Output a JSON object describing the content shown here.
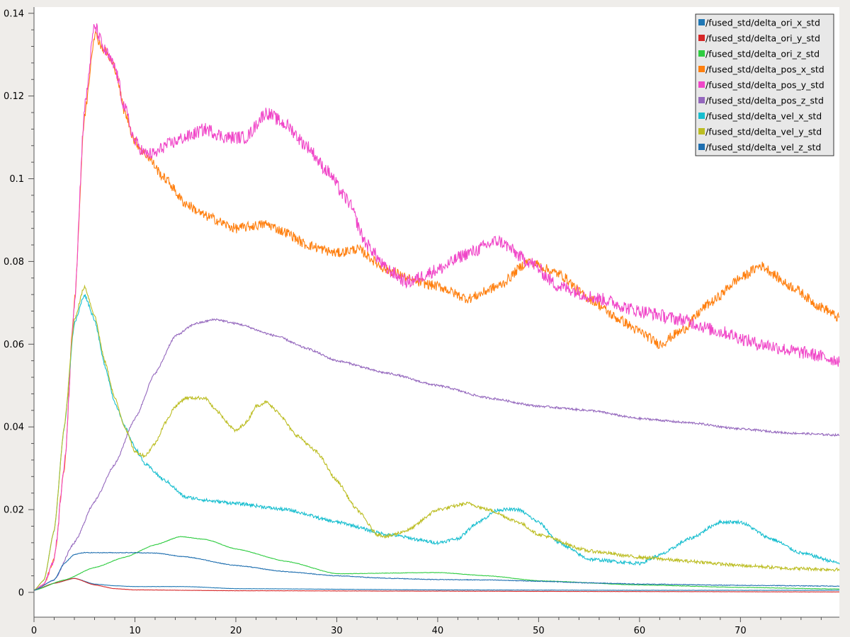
{
  "chart_data": {
    "type": "line",
    "title": "",
    "xlabel": "",
    "ylabel": "",
    "xlim": [
      0,
      79.8
    ],
    "ylim": [
      -0.006,
      0.1415
    ],
    "grid": false,
    "legend_position": "top-right",
    "x_ticks": [
      "0",
      "10",
      "20",
      "30",
      "40",
      "50",
      "60",
      "70"
    ],
    "y_ticks": [
      "0",
      "0.02",
      "0.04",
      "0.06",
      "0.08",
      "0.1",
      "0.12",
      "0.14"
    ],
    "series": [
      {
        "name": "/fused_std/delta_ori_x_std",
        "color": "#1f77b4",
        "noise": 3e-05,
        "points": [
          [
            0,
            0.0005
          ],
          [
            2,
            0.0022
          ],
          [
            4,
            0.0034
          ],
          [
            6,
            0.002
          ],
          [
            8,
            0.0016
          ],
          [
            10,
            0.0014
          ],
          [
            15,
            0.0014
          ],
          [
            20,
            0.0009
          ],
          [
            40,
            0.0006
          ],
          [
            60,
            0.0005
          ],
          [
            80,
            0.0005
          ]
        ]
      },
      {
        "name": "/fused_std/delta_ori_y_std",
        "color": "#d62728",
        "noise": 3e-05,
        "points": [
          [
            0,
            0.0005
          ],
          [
            2,
            0.0022
          ],
          [
            4,
            0.0034
          ],
          [
            6,
            0.0018
          ],
          [
            8,
            0.0009
          ],
          [
            10,
            0.0006
          ],
          [
            20,
            0.0004
          ],
          [
            40,
            0.0003
          ],
          [
            60,
            0.0002
          ],
          [
            80,
            0.0001
          ]
        ]
      },
      {
        "name": "/fused_std/delta_ori_z_std",
        "color": "#2ecc40",
        "noise": 5e-05,
        "points": [
          [
            0,
            0.0005
          ],
          [
            3,
            0.003
          ],
          [
            6,
            0.006
          ],
          [
            9,
            0.0085
          ],
          [
            12,
            0.0115
          ],
          [
            14.5,
            0.0135
          ],
          [
            17,
            0.0128
          ],
          [
            20,
            0.0105
          ],
          [
            25,
            0.0075
          ],
          [
            30,
            0.0045
          ],
          [
            40,
            0.0048
          ],
          [
            45,
            0.004
          ],
          [
            50,
            0.0028
          ],
          [
            60,
            0.0018
          ],
          [
            70,
            0.0012
          ],
          [
            80,
            0.0008
          ]
        ]
      },
      {
        "name": "/fused_std/delta_pos_x_std",
        "color": "#ff7f0e",
        "noise": 0.0012,
        "points": [
          [
            0,
            0.0005
          ],
          [
            1,
            0.002
          ],
          [
            2,
            0.008
          ],
          [
            3,
            0.03
          ],
          [
            4,
            0.07
          ],
          [
            5,
            0.115
          ],
          [
            6,
            0.135
          ],
          [
            7,
            0.131
          ],
          [
            8,
            0.127
          ],
          [
            9,
            0.116
          ],
          [
            10,
            0.109
          ],
          [
            11,
            0.106
          ],
          [
            13,
            0.1
          ],
          [
            15,
            0.094
          ],
          [
            17,
            0.091
          ],
          [
            20,
            0.088
          ],
          [
            23,
            0.089
          ],
          [
            25,
            0.087
          ],
          [
            27,
            0.084
          ],
          [
            30,
            0.082
          ],
          [
            32,
            0.083
          ],
          [
            35,
            0.078
          ],
          [
            38,
            0.075
          ],
          [
            40,
            0.074
          ],
          [
            43,
            0.071
          ],
          [
            46,
            0.074
          ],
          [
            49,
            0.08
          ],
          [
            52,
            0.077
          ],
          [
            55,
            0.071
          ],
          [
            58,
            0.066
          ],
          [
            60,
            0.063
          ],
          [
            62,
            0.06
          ],
          [
            64,
            0.063
          ],
          [
            67,
            0.07
          ],
          [
            70,
            0.076
          ],
          [
            72,
            0.079
          ],
          [
            75,
            0.074
          ],
          [
            78,
            0.069
          ],
          [
            80,
            0.066
          ]
        ]
      },
      {
        "name": "/fused_std/delta_pos_y_std",
        "color": "#f046c8",
        "noise": 0.0016,
        "points": [
          [
            0,
            0.0005
          ],
          [
            1,
            0.002
          ],
          [
            2,
            0.008
          ],
          [
            3,
            0.03
          ],
          [
            4,
            0.07
          ],
          [
            5,
            0.117
          ],
          [
            6,
            0.137
          ],
          [
            7,
            0.131
          ],
          [
            8,
            0.127
          ],
          [
            9,
            0.117
          ],
          [
            10,
            0.109
          ],
          [
            11,
            0.106
          ],
          [
            12,
            0.106
          ],
          [
            13,
            0.108
          ],
          [
            15,
            0.11
          ],
          [
            17,
            0.112
          ],
          [
            19,
            0.11
          ],
          [
            21,
            0.11
          ],
          [
            23,
            0.116
          ],
          [
            25,
            0.113
          ],
          [
            27,
            0.108
          ],
          [
            29,
            0.102
          ],
          [
            31,
            0.095
          ],
          [
            33,
            0.084
          ],
          [
            35,
            0.078
          ],
          [
            37,
            0.075
          ],
          [
            40,
            0.078
          ],
          [
            43,
            0.082
          ],
          [
            46,
            0.085
          ],
          [
            49,
            0.08
          ],
          [
            52,
            0.074
          ],
          [
            56,
            0.071
          ],
          [
            60,
            0.068
          ],
          [
            64,
            0.066
          ],
          [
            68,
            0.063
          ],
          [
            72,
            0.06
          ],
          [
            76,
            0.058
          ],
          [
            80,
            0.056
          ]
        ]
      },
      {
        "name": "/fused_std/delta_pos_z_std",
        "color": "#9467bd",
        "noise": 0.00025,
        "points": [
          [
            0,
            0.0005
          ],
          [
            2,
            0.003
          ],
          [
            4,
            0.012
          ],
          [
            6,
            0.022
          ],
          [
            8,
            0.031
          ],
          [
            10,
            0.042
          ],
          [
            12,
            0.053
          ],
          [
            14,
            0.062
          ],
          [
            16,
            0.065
          ],
          [
            18,
            0.066
          ],
          [
            20,
            0.065
          ],
          [
            24,
            0.062
          ],
          [
            27,
            0.059
          ],
          [
            30,
            0.056
          ],
          [
            35,
            0.053
          ],
          [
            40,
            0.05
          ],
          [
            45,
            0.047
          ],
          [
            50,
            0.045
          ],
          [
            55,
            0.044
          ],
          [
            60,
            0.042
          ],
          [
            65,
            0.041
          ],
          [
            70,
            0.0395
          ],
          [
            75,
            0.0385
          ],
          [
            80,
            0.038
          ]
        ]
      },
      {
        "name": "/fused_std/delta_vel_x_std",
        "color": "#17becf",
        "noise": 0.0004,
        "points": [
          [
            0,
            0.0005
          ],
          [
            1,
            0.003
          ],
          [
            2,
            0.015
          ],
          [
            3,
            0.04
          ],
          [
            4,
            0.065
          ],
          [
            5,
            0.072
          ],
          [
            6,
            0.066
          ],
          [
            7,
            0.055
          ],
          [
            8,
            0.046
          ],
          [
            9,
            0.04
          ],
          [
            10,
            0.035
          ],
          [
            11,
            0.031
          ],
          [
            13,
            0.027
          ],
          [
            15,
            0.023
          ],
          [
            18,
            0.022
          ],
          [
            20,
            0.0215
          ],
          [
            25,
            0.02
          ],
          [
            30,
            0.017
          ],
          [
            35,
            0.014
          ],
          [
            40,
            0.012
          ],
          [
            42,
            0.013
          ],
          [
            44,
            0.017
          ],
          [
            46,
            0.02
          ],
          [
            48,
            0.02
          ],
          [
            50,
            0.017
          ],
          [
            52,
            0.012
          ],
          [
            55,
            0.008
          ],
          [
            60,
            0.007
          ],
          [
            62,
            0.009
          ],
          [
            65,
            0.013
          ],
          [
            68,
            0.017
          ],
          [
            70,
            0.017
          ],
          [
            73,
            0.013
          ],
          [
            76,
            0.0095
          ],
          [
            80,
            0.007
          ]
        ]
      },
      {
        "name": "/fused_std/delta_vel_y_std",
        "color": "#bcbd22",
        "noise": 0.0004,
        "points": [
          [
            0,
            0.0005
          ],
          [
            1,
            0.003
          ],
          [
            2,
            0.015
          ],
          [
            3,
            0.04
          ],
          [
            4,
            0.066
          ],
          [
            5,
            0.074
          ],
          [
            6,
            0.067
          ],
          [
            7,
            0.056
          ],
          [
            8,
            0.047
          ],
          [
            9,
            0.04
          ],
          [
            10,
            0.034
          ],
          [
            11,
            0.033
          ],
          [
            12,
            0.036
          ],
          [
            13,
            0.041
          ],
          [
            14,
            0.045
          ],
          [
            15,
            0.047
          ],
          [
            17,
            0.047
          ],
          [
            18,
            0.044
          ],
          [
            20,
            0.039
          ],
          [
            21,
            0.041
          ],
          [
            22,
            0.045
          ],
          [
            23,
            0.046
          ],
          [
            24,
            0.044
          ],
          [
            26,
            0.038
          ],
          [
            28,
            0.034
          ],
          [
            30,
            0.027
          ],
          [
            32,
            0.02
          ],
          [
            34,
            0.014
          ],
          [
            35,
            0.0135
          ],
          [
            37,
            0.015
          ],
          [
            40,
            0.02
          ],
          [
            43,
            0.0215
          ],
          [
            45,
            0.02
          ],
          [
            48,
            0.017
          ],
          [
            50,
            0.014
          ],
          [
            55,
            0.01
          ],
          [
            60,
            0.0085
          ],
          [
            65,
            0.0075
          ],
          [
            70,
            0.0065
          ],
          [
            75,
            0.0058
          ],
          [
            80,
            0.0055
          ]
        ]
      },
      {
        "name": "/fused_std/delta_vel_z_std",
        "color": "#1f6fb0",
        "noise": 8e-05,
        "points": [
          [
            0,
            0.0005
          ],
          [
            2,
            0.003
          ],
          [
            3,
            0.007
          ],
          [
            4,
            0.0092
          ],
          [
            5,
            0.0096
          ],
          [
            7,
            0.0096
          ],
          [
            10,
            0.0096
          ],
          [
            12,
            0.0095
          ],
          [
            15,
            0.0086
          ],
          [
            20,
            0.0065
          ],
          [
            25,
            0.005
          ],
          [
            30,
            0.004
          ],
          [
            35,
            0.0034
          ],
          [
            40,
            0.0031
          ],
          [
            45,
            0.003
          ],
          [
            50,
            0.0027
          ],
          [
            55,
            0.0023
          ],
          [
            60,
            0.002
          ],
          [
            70,
            0.0017
          ],
          [
            80,
            0.0015
          ]
        ]
      }
    ]
  }
}
